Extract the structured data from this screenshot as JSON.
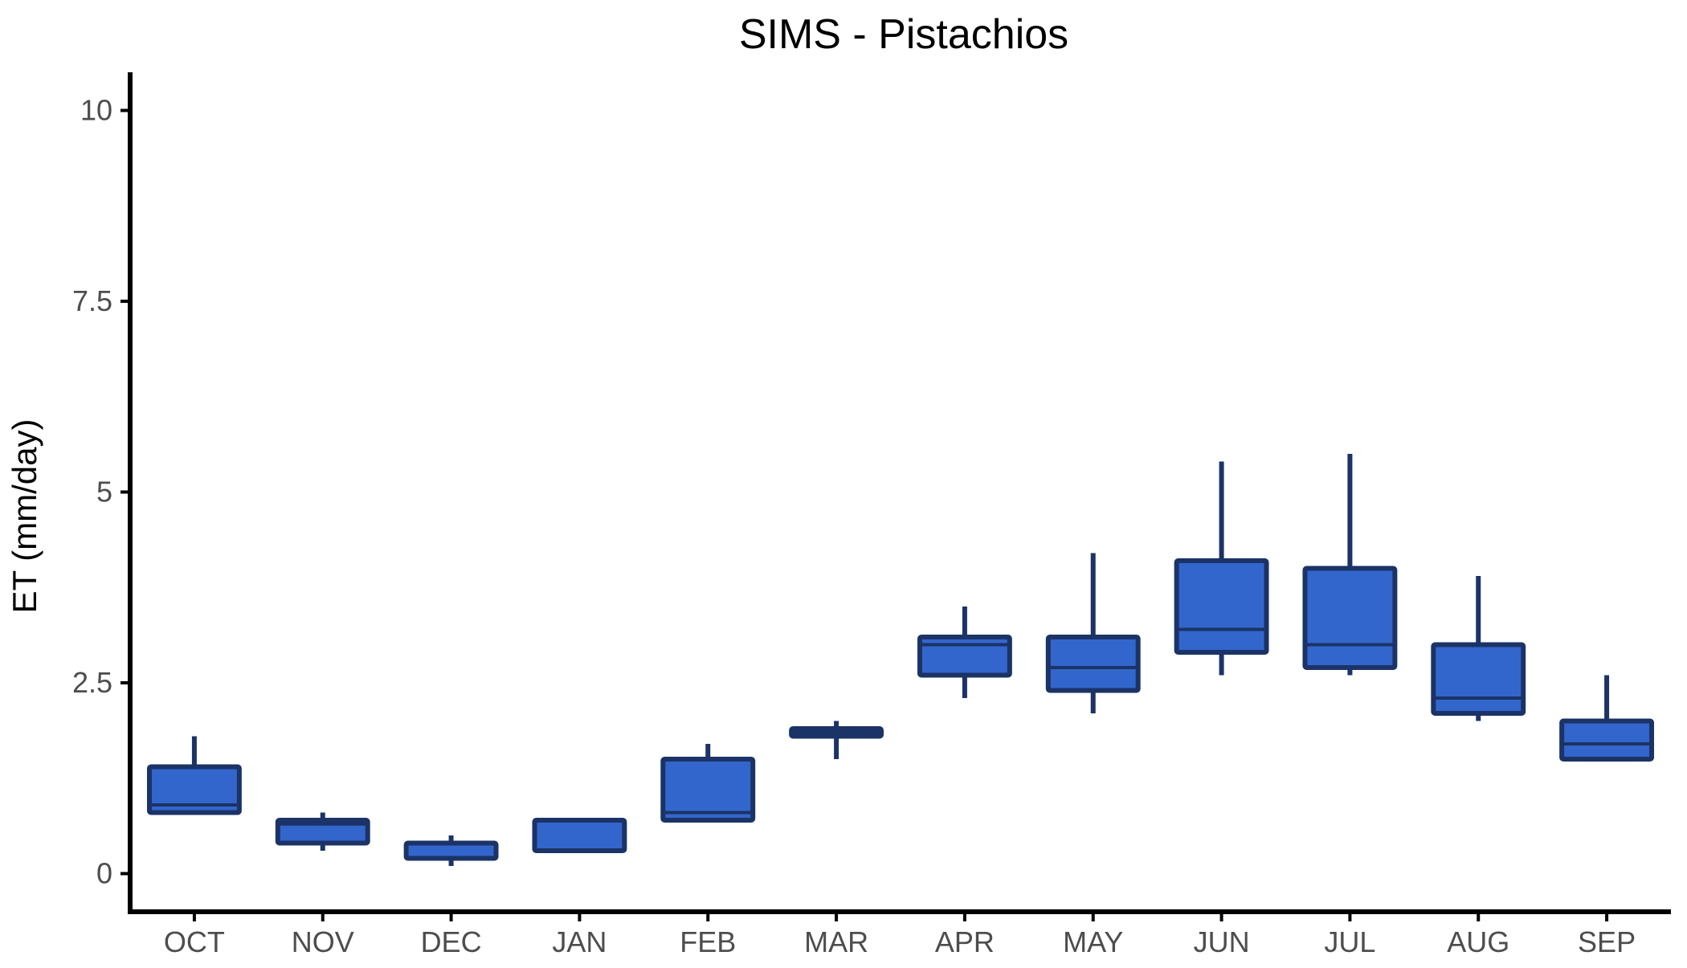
{
  "chart_data": {
    "type": "box",
    "title": "SIMS - Pistachios",
    "xlabel": "",
    "ylabel": "ET (mm/day)",
    "ylim": [
      -0.5,
      10.5
    ],
    "yticks": [
      0,
      2.5,
      5,
      7.5,
      10
    ],
    "ytick_labels": [
      "0",
      "2.5",
      "5",
      "7.5",
      "10"
    ],
    "grid": false,
    "legend": "none",
    "colors": {
      "box_fill": "#3366CC",
      "box_stroke": "#1B3366",
      "axis": "#000000",
      "tick_label": "#4d4d4d"
    },
    "categories": [
      "OCT",
      "NOV",
      "DEC",
      "JAN",
      "FEB",
      "MAR",
      "APR",
      "MAY",
      "JUN",
      "JUL",
      "AUG",
      "SEP"
    ],
    "boxes": [
      {
        "category": "OCT",
        "min": 0.8,
        "q1": 0.8,
        "median": 0.9,
        "q3": 1.4,
        "max": 1.8
      },
      {
        "category": "NOV",
        "min": 0.3,
        "q1": 0.4,
        "median": 0.65,
        "q3": 0.7,
        "max": 0.8
      },
      {
        "category": "DEC",
        "min": 0.1,
        "q1": 0.2,
        "median": 0.4,
        "q3": 0.4,
        "max": 0.5
      },
      {
        "category": "JAN",
        "min": 0.3,
        "q1": 0.3,
        "median": 0.7,
        "q3": 0.7,
        "max": 0.7
      },
      {
        "category": "FEB",
        "min": 0.7,
        "q1": 0.7,
        "median": 0.8,
        "q3": 1.5,
        "max": 1.7
      },
      {
        "category": "MAR",
        "min": 1.5,
        "q1": 1.8,
        "median": 1.85,
        "q3": 1.9,
        "max": 2.0
      },
      {
        "category": "APR",
        "min": 2.3,
        "q1": 2.6,
        "median": 3.0,
        "q3": 3.1,
        "max": 3.5
      },
      {
        "category": "MAY",
        "min": 2.1,
        "q1": 2.4,
        "median": 2.7,
        "q3": 3.1,
        "max": 4.2
      },
      {
        "category": "JUN",
        "min": 2.6,
        "q1": 2.9,
        "median": 3.2,
        "q3": 4.1,
        "max": 5.4
      },
      {
        "category": "JUL",
        "min": 2.6,
        "q1": 2.7,
        "median": 3.0,
        "q3": 4.0,
        "max": 5.5
      },
      {
        "category": "AUG",
        "min": 2.0,
        "q1": 2.1,
        "median": 2.3,
        "q3": 3.0,
        "max": 3.9
      },
      {
        "category": "SEP",
        "min": 1.5,
        "q1": 1.5,
        "median": 1.7,
        "q3": 2.0,
        "max": 2.6
      }
    ]
  }
}
